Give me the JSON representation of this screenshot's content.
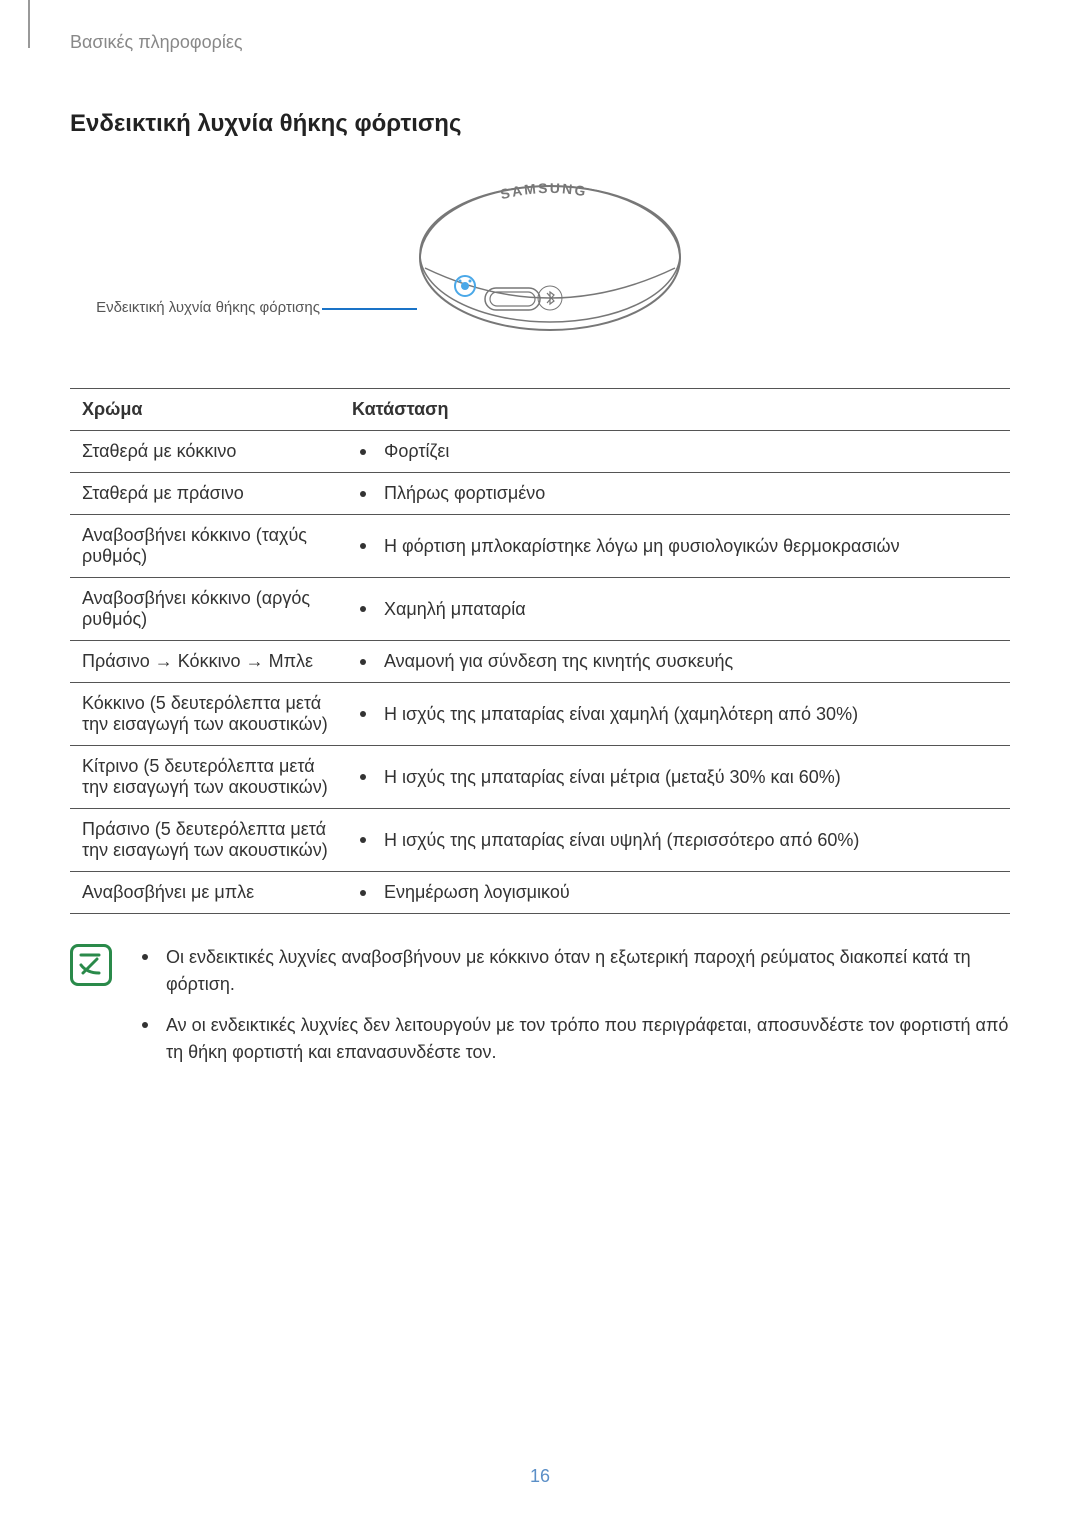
{
  "breadcrumb": "Βασικές πληροφορίες",
  "section_title": "Ενδεικτική λυχνία θήκης φόρτισης",
  "figure": {
    "caption": "Ενδεικτική λυχνία θήκης φόρτισης",
    "brand_text": "SAMSUNG",
    "indicator_color": "#4aa8e8",
    "outline_color": "#777777",
    "leader_color": "#1a73c7"
  },
  "table": {
    "headers": {
      "color": "Χρώμα",
      "status": "Κατάσταση"
    },
    "rows": [
      {
        "color": "Σταθερά με κόκκινο",
        "status": "Φορτίζει"
      },
      {
        "color": "Σταθερά με πράσινο",
        "status": "Πλήρως φορτισμένο"
      },
      {
        "color": "Αναβοσβήνει κόκκινο (ταχύς ρυθμός)",
        "status": "Η φόρτιση μπλοκαρίστηκε λόγω μη φυσιολογικών θερμοκρασιών"
      },
      {
        "color": "Αναβοσβήνει κόκκινο (αργός ρυθμός)",
        "status": "Χαμηλή μπαταρία"
      },
      {
        "color": "Πράσινο → Κόκκινο → Μπλε",
        "status": "Αναμονή για σύνδεση της κινητής συσκευής"
      },
      {
        "color": "Κόκκινο (5 δευτερόλεπτα μετά την εισαγωγή των ακουστικών)",
        "status": "Η ισχύς της μπαταρίας είναι χαμηλή (χαμηλότερη από 30%)"
      },
      {
        "color": "Κίτρινο (5 δευτερόλεπτα μετά την εισαγωγή των ακουστικών)",
        "status": "Η ισχύς της μπαταρίας είναι μέτρια (μεταξύ 30% και 60%)"
      },
      {
        "color": "Πράσινο (5 δευτερόλεπτα μετά την εισαγωγή των ακουστικών)",
        "status": "Η ισχύς της μπαταρίας είναι υψηλή (περισσότερο από 60%)"
      },
      {
        "color": "Αναβοσβήνει με μπλε",
        "status": "Ενημέρωση λογισμικού"
      }
    ]
  },
  "notes": [
    "Οι ενδεικτικές λυχνίες αναβοσβήνουν με κόκκινο όταν η εξωτερική παροχή ρεύματος διακοπεί κατά τη φόρτιση.",
    "Αν οι ενδεικτικές λυχνίες δεν λειτουργούν με τον τρόπο που περιγράφεται, αποσυνδέστε τον φορτιστή από τη θήκη φορτιστή και επανασυνδέστε τον."
  ],
  "note_icon_color": "#2a8a4a",
  "page_number": "16",
  "page_number_color": "#5b8fc7"
}
